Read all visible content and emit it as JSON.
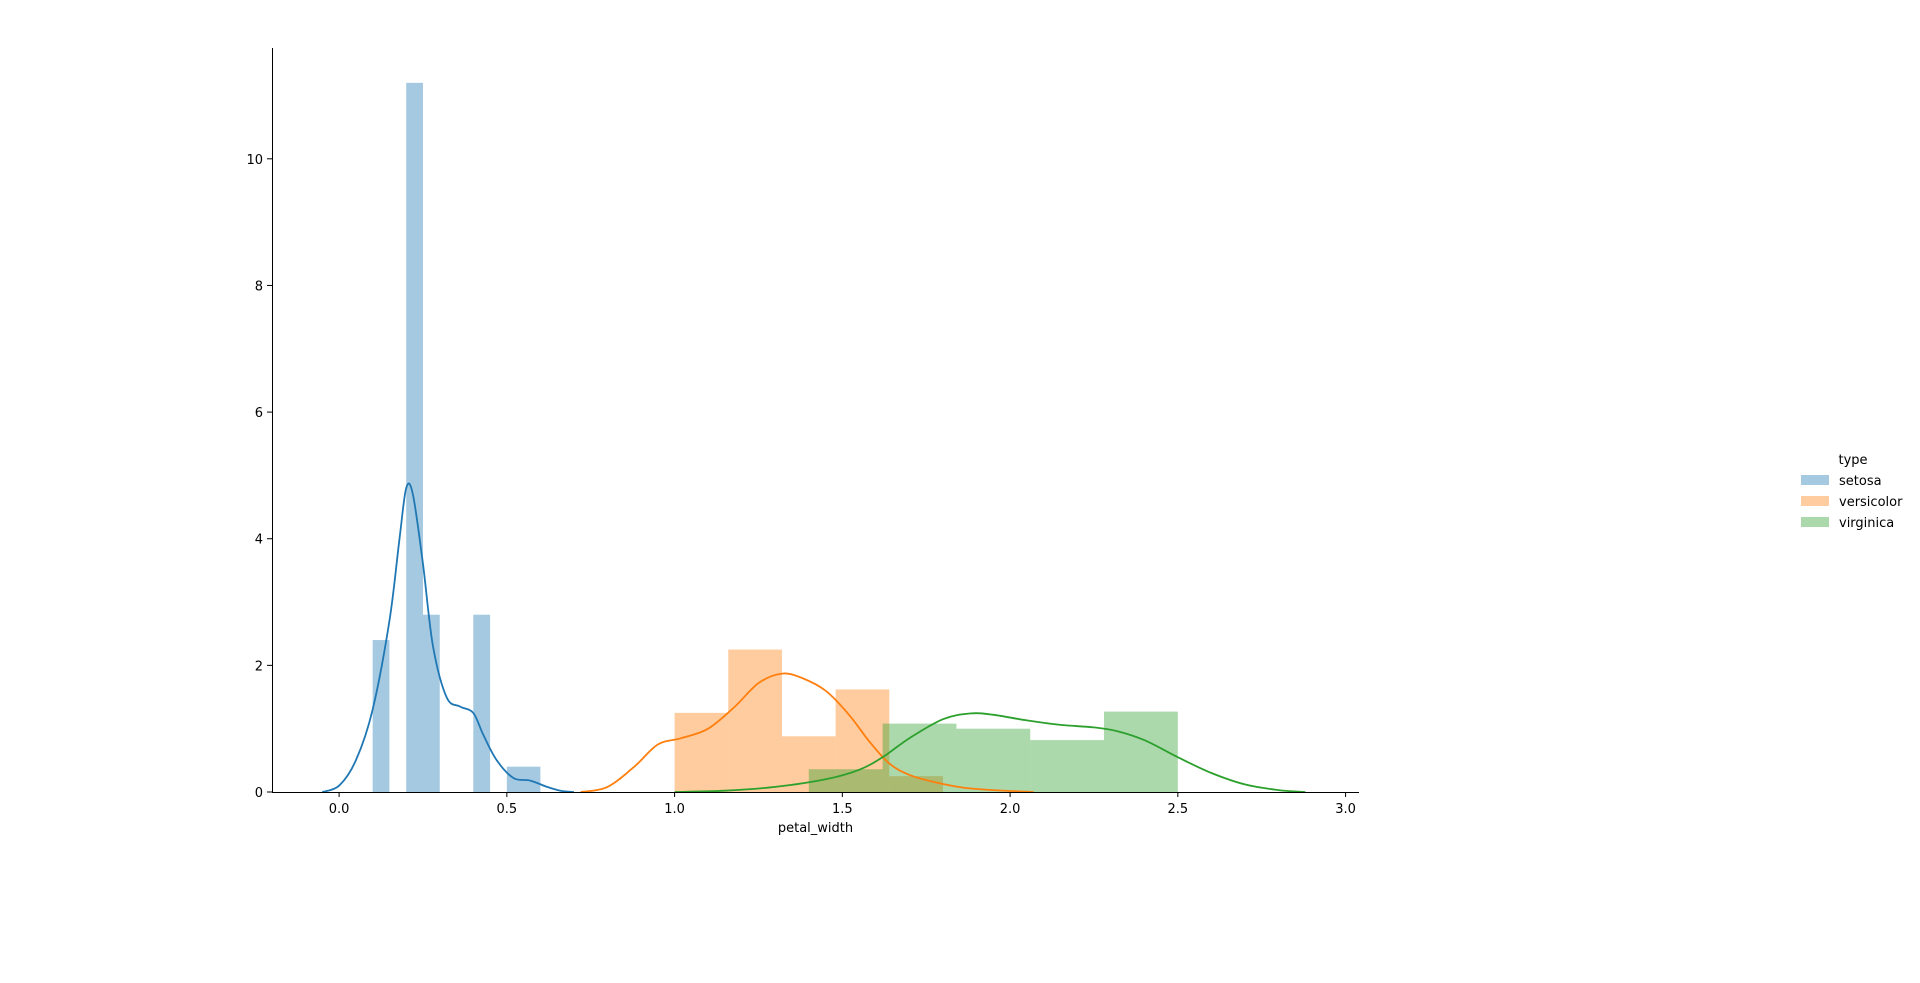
{
  "chart_data": {
    "type": "histogram",
    "xlabel": "petal_width",
    "ylabel": "",
    "xlim": [
      -0.2,
      3.04
    ],
    "ylim": [
      0,
      11.75
    ],
    "x_ticks": [
      0.0,
      0.5,
      1.0,
      1.5,
      2.0,
      2.5,
      3.0
    ],
    "x_tick_labels": [
      "0.0",
      "0.5",
      "1.0",
      "1.5",
      "2.0",
      "2.5",
      "3.0"
    ],
    "y_ticks": [
      0,
      2,
      4,
      6,
      8,
      10
    ],
    "y_tick_labels": [
      "0",
      "2",
      "4",
      "6",
      "8",
      "10"
    ],
    "grid": false,
    "legend": {
      "title": "type",
      "placement": "right"
    },
    "series": [
      {
        "name": "setosa",
        "color": "#1f77b4",
        "bars": [
          {
            "x0": 0.1,
            "x1": 0.15,
            "height": 2.4
          },
          {
            "x0": 0.2,
            "x1": 0.25,
            "height": 11.2
          },
          {
            "x0": 0.25,
            "x1": 0.3,
            "height": 2.8
          },
          {
            "x0": 0.4,
            "x1": 0.45,
            "height": 2.8
          },
          {
            "x0": 0.5,
            "x1": 0.6,
            "height": 0.4
          }
        ],
        "kde": [
          [
            -0.05,
            0.0
          ],
          [
            0.0,
            0.1
          ],
          [
            0.05,
            0.5
          ],
          [
            0.1,
            1.3
          ],
          [
            0.15,
            2.7
          ],
          [
            0.18,
            4.0
          ],
          [
            0.2,
            4.8
          ],
          [
            0.22,
            4.7
          ],
          [
            0.25,
            3.6
          ],
          [
            0.28,
            2.3
          ],
          [
            0.32,
            1.5
          ],
          [
            0.36,
            1.35
          ],
          [
            0.4,
            1.25
          ],
          [
            0.43,
            0.9
          ],
          [
            0.47,
            0.5
          ],
          [
            0.52,
            0.22
          ],
          [
            0.57,
            0.18
          ],
          [
            0.62,
            0.08
          ],
          [
            0.66,
            0.02
          ],
          [
            0.7,
            0.0
          ]
        ]
      },
      {
        "name": "versicolor",
        "color": "#ff7f0e",
        "bars": [
          {
            "x0": 1.0,
            "x1": 1.16,
            "height": 1.25
          },
          {
            "x0": 1.16,
            "x1": 1.32,
            "height": 2.25
          },
          {
            "x0": 1.32,
            "x1": 1.48,
            "height": 0.88
          },
          {
            "x0": 1.48,
            "x1": 1.64,
            "height": 1.62
          },
          {
            "x0": 1.64,
            "x1": 1.8,
            "height": 0.25
          }
        ],
        "kde": [
          [
            0.72,
            0.0
          ],
          [
            0.8,
            0.08
          ],
          [
            0.88,
            0.4
          ],
          [
            0.95,
            0.75
          ],
          [
            1.02,
            0.85
          ],
          [
            1.1,
            1.0
          ],
          [
            1.18,
            1.35
          ],
          [
            1.25,
            1.72
          ],
          [
            1.32,
            1.87
          ],
          [
            1.38,
            1.8
          ],
          [
            1.45,
            1.6
          ],
          [
            1.52,
            1.22
          ],
          [
            1.58,
            0.8
          ],
          [
            1.64,
            0.45
          ],
          [
            1.7,
            0.27
          ],
          [
            1.78,
            0.15
          ],
          [
            1.86,
            0.07
          ],
          [
            1.95,
            0.03
          ],
          [
            2.07,
            0.0
          ]
        ]
      },
      {
        "name": "virginica",
        "color": "#2ca02c",
        "bars": [
          {
            "x0": 1.4,
            "x1": 1.62,
            "height": 0.36
          },
          {
            "x0": 1.62,
            "x1": 1.84,
            "height": 1.08
          },
          {
            "x0": 1.84,
            "x1": 2.06,
            "height": 1.0
          },
          {
            "x0": 2.06,
            "x1": 2.28,
            "height": 0.82
          },
          {
            "x0": 2.28,
            "x1": 2.5,
            "height": 1.27
          }
        ],
        "kde": [
          [
            1.0,
            0.0
          ],
          [
            1.15,
            0.02
          ],
          [
            1.3,
            0.08
          ],
          [
            1.45,
            0.2
          ],
          [
            1.55,
            0.35
          ],
          [
            1.62,
            0.55
          ],
          [
            1.7,
            0.85
          ],
          [
            1.8,
            1.15
          ],
          [
            1.88,
            1.24
          ],
          [
            1.95,
            1.22
          ],
          [
            2.05,
            1.13
          ],
          [
            2.15,
            1.06
          ],
          [
            2.25,
            1.02
          ],
          [
            2.32,
            0.96
          ],
          [
            2.4,
            0.82
          ],
          [
            2.5,
            0.55
          ],
          [
            2.6,
            0.3
          ],
          [
            2.7,
            0.12
          ],
          [
            2.8,
            0.03
          ],
          [
            2.88,
            0.0
          ]
        ]
      }
    ]
  }
}
